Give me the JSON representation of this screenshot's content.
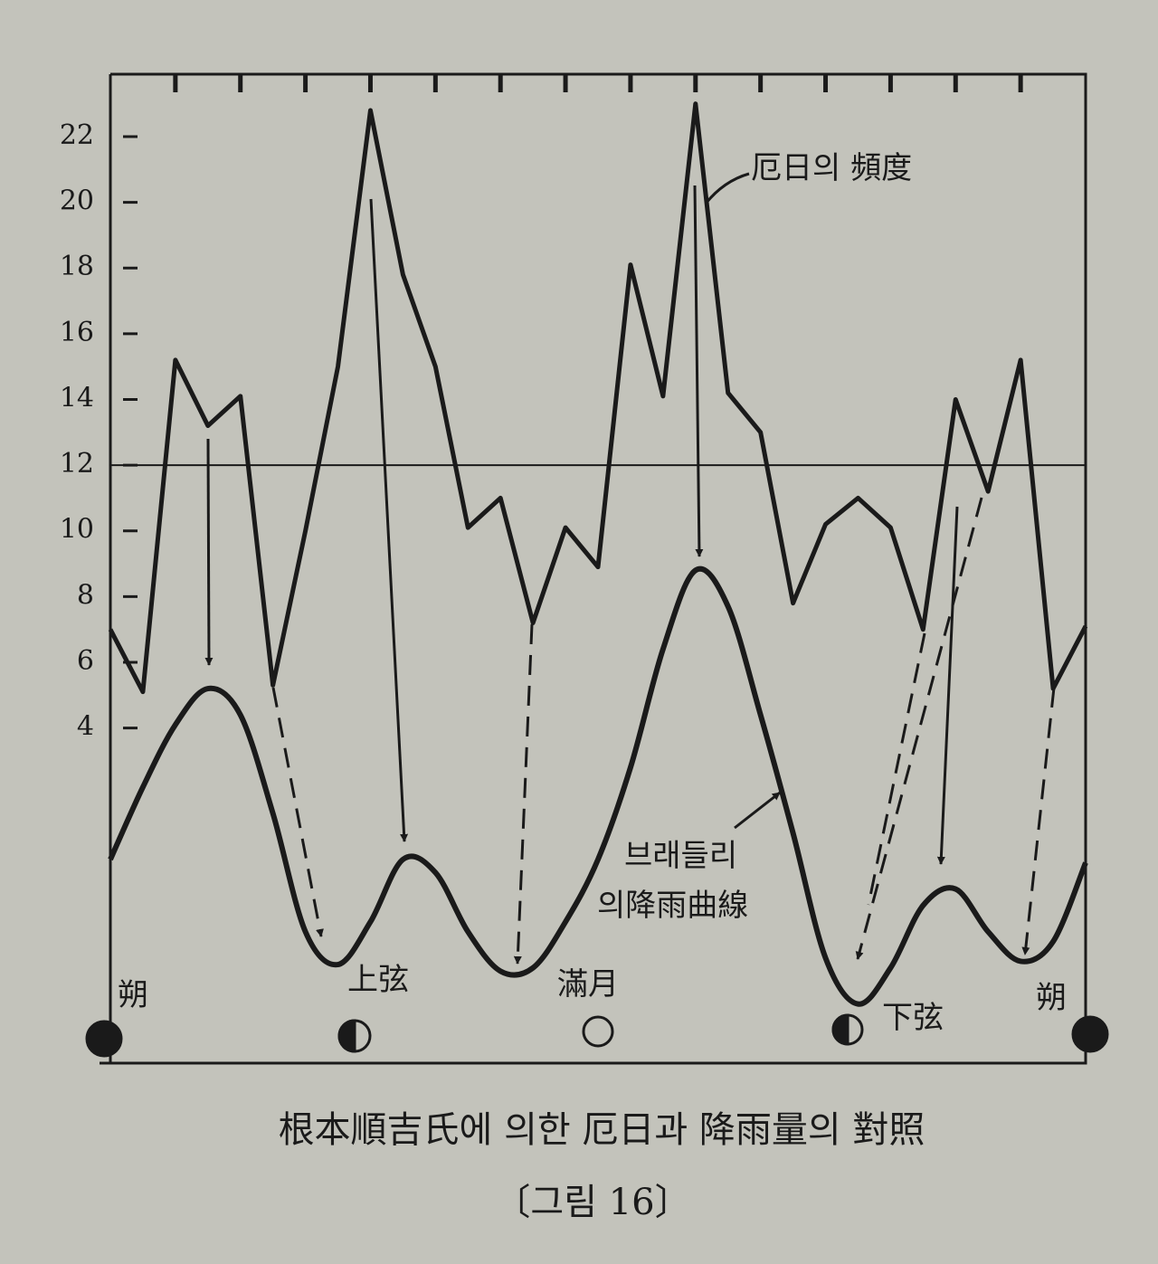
{
  "chart_data": {
    "type": "line",
    "caption": "根本順吉氏에 의한 厄日과 降雨量의 對照",
    "figure_label": "〔그림 16〕",
    "annotations": [
      "厄日의 頻度",
      "브래들리",
      "의降雨曲線"
    ],
    "moon_phases": [
      "朔",
      "上弦",
      "滿月",
      "下弦",
      "朔"
    ],
    "categories": [
      null,
      null,
      null,
      null,
      null,
      null,
      null,
      null,
      null,
      null,
      null,
      null,
      null,
      null,
      null,
      null,
      null,
      null,
      null,
      null,
      null,
      null,
      null,
      null,
      null,
      null,
      null,
      null,
      null,
      null,
      null
    ],
    "series": [
      {
        "color": "#1a1a1a",
        "smooth": false,
        "values": [
          7,
          5.1,
          15.2,
          13.2,
          14.1,
          5.3,
          10,
          15,
          22.8,
          17.8,
          15,
          10.1,
          11,
          7.2,
          10.1,
          8.9,
          18.1,
          14.1,
          23,
          14.2,
          13,
          7.8,
          10.2,
          11,
          10.1,
          7,
          14,
          11.2,
          15.2,
          5.2,
          7.1
        ]
      },
      {
        "color": "#1a1a1a",
        "smooth": true,
        "values": [
          0,
          2.2,
          4.1,
          5.2,
          4.4,
          1.4,
          -2.2,
          -3.2,
          -1.9,
          0,
          -0.4,
          -2.2,
          -3.4,
          -3.3,
          -1.9,
          0,
          2.8,
          6.4,
          8.8,
          7.7,
          4.4,
          0.8,
          -3,
          -4.4,
          -3.3,
          -1.4,
          -0.9,
          -2.2,
          -3.1,
          -2.5,
          -0.1
        ]
      }
    ],
    "reference_line": 12,
    "ylim": [
      -6.2,
      23.9
    ],
    "yticks": [
      4,
      6,
      8,
      10,
      12,
      14,
      16,
      18,
      20,
      22
    ]
  }
}
